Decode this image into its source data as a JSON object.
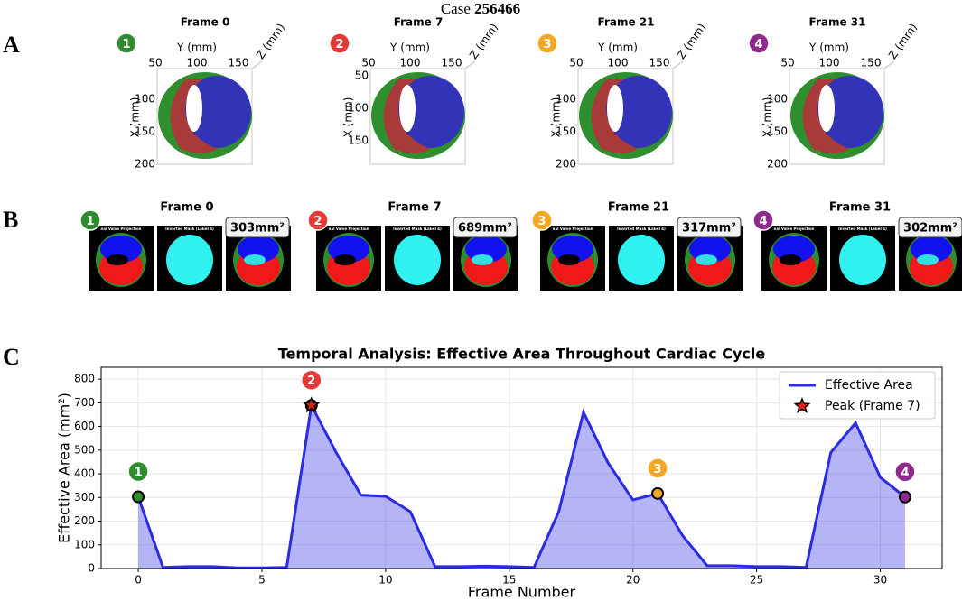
{
  "case_label": "Case",
  "case_id": "256466",
  "panel_labels": [
    "A",
    "B",
    "C"
  ],
  "panel_a": {
    "y_label": "Y (mm)",
    "z_label": "Z (mm)",
    "x_label": "X (mm)",
    "frames": [
      {
        "title": "Frame 0",
        "badge": "1",
        "color": "#2e8b2e",
        "y_ticks": [
          "50",
          "100",
          "150"
        ],
        "x_ticks": [
          "100",
          "150",
          "200"
        ]
      },
      {
        "title": "Frame 7",
        "badge": "2",
        "color": "#e53935",
        "y_ticks": [
          "50",
          "100",
          "150"
        ],
        "x_ticks": [
          "50",
          "100",
          "150"
        ]
      },
      {
        "title": "Frame 21",
        "badge": "3",
        "color": "#f5a623",
        "y_ticks": [
          "50",
          "100",
          "150"
        ],
        "x_ticks": [
          "100",
          "150",
          "200"
        ]
      },
      {
        "title": "Frame 31",
        "badge": "4",
        "color": "#8e2a8e",
        "y_ticks": [
          "50",
          "100",
          "150"
        ],
        "x_ticks": [
          "100",
          "150",
          "200"
        ]
      }
    ]
  },
  "panel_b": {
    "sub_titles": [
      "nal Valve Projection",
      "Inverted Mask (Label 4)"
    ],
    "frames": [
      {
        "title": "Frame 0",
        "badge": "1",
        "color": "#2e8b2e",
        "area": "303mm²"
      },
      {
        "title": "Frame 7",
        "badge": "2",
        "color": "#e53935",
        "area": "689mm²"
      },
      {
        "title": "Frame 21",
        "badge": "3",
        "color": "#f5a623",
        "area": "317mm²"
      },
      {
        "title": "Frame 31",
        "badge": "4",
        "color": "#8e2a8e",
        "area": "302mm²"
      }
    ]
  },
  "chart_data": {
    "type": "area",
    "title": "Temporal Analysis: Effective Area Throughout Cardiac Cycle",
    "x_label": "Frame Number",
    "y_label": "Effective Area (mm²)",
    "x": [
      0,
      1,
      2,
      3,
      4,
      5,
      6,
      7,
      8,
      9,
      10,
      11,
      12,
      13,
      14,
      15,
      16,
      17,
      18,
      19,
      20,
      21,
      22,
      23,
      24,
      25,
      26,
      27,
      28,
      29,
      30,
      31
    ],
    "series": [
      {
        "name": "Effective Area",
        "color": "#2b2be6",
        "values": [
          303,
          5,
          8,
          8,
          3,
          3,
          5,
          689,
          490,
          310,
          305,
          240,
          8,
          8,
          10,
          8,
          5,
          240,
          660,
          445,
          290,
          317,
          140,
          12,
          12,
          8,
          8,
          5,
          490,
          615,
          385,
          302
        ]
      }
    ],
    "peak": {
      "name": "Peak (Frame 7)",
      "frame": 7
    },
    "markers": [
      {
        "frame": 0,
        "label": "1",
        "color": "#2e8b2e"
      },
      {
        "frame": 7,
        "label": "2",
        "color": "#e53935"
      },
      {
        "frame": 21,
        "label": "3",
        "color": "#f5a623"
      },
      {
        "frame": 31,
        "label": "4",
        "color": "#8e2a8e"
      }
    ],
    "xlim": [
      -1.5,
      32.5
    ],
    "ylim": [
      0,
      850
    ],
    "xticks": [
      0,
      5,
      10,
      15,
      20,
      25,
      30
    ],
    "yticks": [
      0,
      100,
      200,
      300,
      400,
      500,
      600,
      700,
      800
    ],
    "grid": true,
    "legend": "upper right"
  }
}
